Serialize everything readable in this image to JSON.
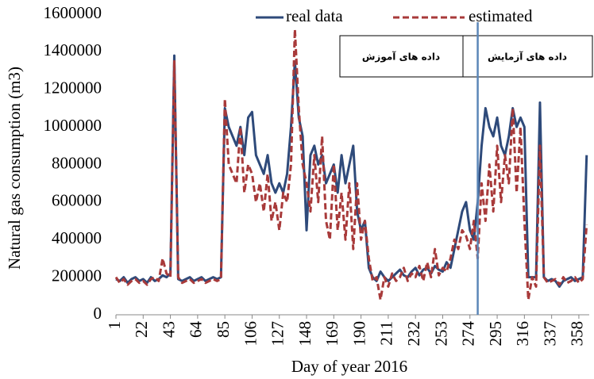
{
  "chart_data": {
    "type": "line",
    "x_label": "Day of year 2016",
    "y_label": "Natural gas consumption (m3)",
    "annotations": [
      "داده های آموزش",
      "داده های آزمایش"
    ],
    "vline": 280,
    "vline_color": "#5b86b8",
    "x": [
      1,
      4,
      7,
      10,
      13,
      16,
      19,
      22,
      25,
      28,
      31,
      34,
      37,
      40,
      43,
      46,
      49,
      52,
      55,
      58,
      61,
      64,
      67,
      70,
      73,
      76,
      79,
      82,
      85,
      88,
      91,
      94,
      97,
      100,
      103,
      106,
      109,
      112,
      115,
      118,
      121,
      124,
      127,
      130,
      133,
      136,
      139,
      142,
      145,
      148,
      151,
      154,
      157,
      160,
      163,
      166,
      169,
      172,
      175,
      178,
      181,
      184,
      187,
      190,
      193,
      196,
      199,
      202,
      205,
      208,
      211,
      214,
      217,
      220,
      223,
      226,
      229,
      232,
      235,
      238,
      241,
      244,
      247,
      250,
      253,
      256,
      259,
      262,
      265,
      268,
      271,
      274,
      277,
      280,
      283,
      286,
      289,
      292,
      295,
      298,
      301,
      304,
      307,
      310,
      313,
      316,
      319,
      322,
      325,
      328,
      331,
      334,
      337,
      340,
      343,
      346,
      349,
      352,
      355,
      358,
      361,
      364
    ],
    "series": [
      {
        "name": "real data",
        "color": "#2e4a7a",
        "dashed": false,
        "values": [
          190000,
          180000,
          200000,
          170000,
          190000,
          200000,
          180000,
          190000,
          170000,
          200000,
          180000,
          190000,
          210000,
          200000,
          220000,
          1380000,
          190000,
          180000,
          190000,
          200000,
          180000,
          190000,
          200000,
          180000,
          190000,
          200000,
          190000,
          200000,
          1100000,
          1000000,
          950000,
          900000,
          1000000,
          850000,
          1050000,
          1080000,
          850000,
          800000,
          750000,
          850000,
          700000,
          650000,
          700000,
          650000,
          750000,
          1000000,
          1350000,
          1050000,
          950000,
          450000,
          850000,
          900000,
          800000,
          850000,
          700000,
          750000,
          800000,
          650000,
          850000,
          700000,
          800000,
          900000,
          550000,
          450000,
          500000,
          250000,
          200000,
          180000,
          230000,
          200000,
          180000,
          200000,
          220000,
          240000,
          210000,
          200000,
          230000,
          250000,
          210000,
          240000,
          250000,
          220000,
          260000,
          240000,
          230000,
          280000,
          250000,
          350000,
          450000,
          550000,
          600000,
          450000,
          400000,
          600000,
          900000,
          1100000,
          1000000,
          950000,
          1050000,
          900000,
          850000,
          950000,
          1100000,
          1000000,
          1050000,
          1000000,
          200000,
          200000,
          200000,
          1130000,
          200000,
          180000,
          190000,
          180000,
          150000,
          180000,
          190000,
          200000,
          180000,
          190000,
          200000,
          850000
        ]
      },
      {
        "name": "estimated",
        "color": "#a83a3a",
        "dashed": true,
        "values": [
          200000,
          170000,
          190000,
          160000,
          180000,
          190000,
          170000,
          180000,
          160000,
          190000,
          200000,
          180000,
          300000,
          220000,
          200000,
          1350000,
          200000,
          170000,
          180000,
          190000,
          170000,
          180000,
          190000,
          170000,
          180000,
          190000,
          180000,
          190000,
          1150000,
          800000,
          750000,
          700000,
          1000000,
          650000,
          800000,
          750000,
          600000,
          700000,
          550000,
          750000,
          500000,
          600000,
          450000,
          650000,
          600000,
          800000,
          1520000,
          1100000,
          800000,
          700000,
          550000,
          850000,
          600000,
          950000,
          500000,
          400000,
          800000,
          450000,
          650000,
          400000,
          700000,
          350000,
          700000,
          400000,
          500000,
          300000,
          180000,
          200000,
          80000,
          200000,
          150000,
          220000,
          180000,
          200000,
          250000,
          180000,
          220000,
          200000,
          260000,
          180000,
          280000,
          200000,
          350000,
          210000,
          250000,
          230000,
          300000,
          400000,
          350000,
          450000,
          420000,
          350000,
          500000,
          300000,
          700000,
          500000,
          800000,
          550000,
          900000,
          600000,
          850000,
          700000,
          1100000,
          650000,
          1000000,
          500000,
          80000,
          200000,
          150000,
          900000,
          200000,
          170000,
          180000,
          190000,
          160000,
          200000,
          170000,
          180000,
          200000,
          170000,
          190000,
          480000
        ]
      }
    ],
    "xlim": [
      1,
      366
    ],
    "xticks": [
      1,
      22,
      43,
      64,
      85,
      106,
      127,
      148,
      169,
      190,
      211,
      232,
      253,
      274,
      295,
      316,
      337,
      358
    ],
    "ylim": [
      0,
      1600000
    ],
    "yticks": [
      0,
      200000,
      400000,
      600000,
      800000,
      1000000,
      1200000,
      1400000,
      1600000
    ]
  }
}
